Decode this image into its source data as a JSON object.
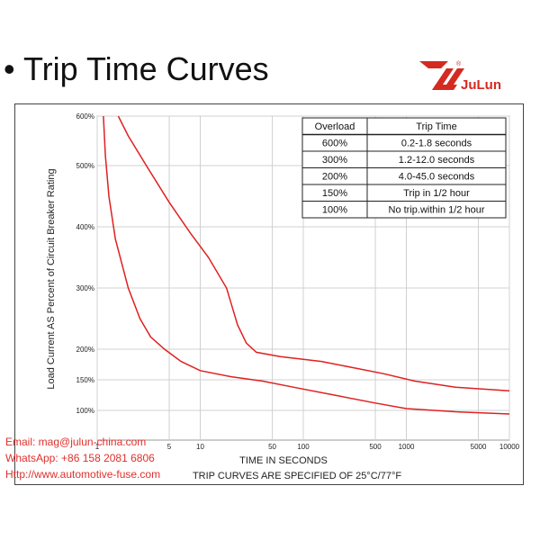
{
  "slide": {
    "title": "• Trip Time Curves",
    "logo_text": "JuLun",
    "logo_reg": "®",
    "logo_color": "#d42a20"
  },
  "contact": {
    "email": "Email: mag@julun-china.com",
    "whatsapp": "WhatsApp: +86 158 2081 6806",
    "website": "Http://www.automotive-fuse.com"
  },
  "chart_data": {
    "type": "line",
    "title": "",
    "xlabel": "TIME IN SECONDS",
    "ylabel": "Load Current AS Percent of Circuit Breaker Rating",
    "footnote": "TRIP CURVES ARE SPECIFIED OF 25°C/77°F",
    "x_scale": "log",
    "xlim": [
      1,
      10000
    ],
    "ylim": [
      90,
      600
    ],
    "grid": true,
    "x_ticks": [
      "1",
      "5",
      "10",
      "50",
      "100",
      "500",
      "1000",
      "5000",
      "10000"
    ],
    "y_ticks": [
      "100%",
      "150%",
      "200%",
      "300%",
      "400%",
      "500%",
      "600%"
    ],
    "series_color": "#e02020",
    "series": [
      {
        "points": [
          [
            1.15,
            600
          ],
          [
            1.2,
            520
          ],
          [
            1.3,
            450
          ],
          [
            1.5,
            380
          ],
          [
            2,
            300
          ],
          [
            2.6,
            250
          ],
          [
            3.3,
            220
          ],
          [
            4.5,
            200
          ],
          [
            6.5,
            180
          ],
          [
            10,
            165
          ],
          [
            20,
            155
          ],
          [
            40,
            148
          ],
          [
            80,
            138
          ],
          [
            200,
            125
          ],
          [
            500,
            112
          ],
          [
            1000,
            103
          ],
          [
            3000,
            97
          ],
          [
            10000,
            92
          ]
        ]
      },
      {
        "points": [
          [
            1.6,
            600
          ],
          [
            2,
            560
          ],
          [
            3,
            500
          ],
          [
            5,
            440
          ],
          [
            8,
            390
          ],
          [
            12,
            350
          ],
          [
            18,
            300
          ],
          [
            23,
            240
          ],
          [
            28,
            210
          ],
          [
            35,
            195
          ],
          [
            60,
            188
          ],
          [
            150,
            180
          ],
          [
            300,
            170
          ],
          [
            600,
            160
          ],
          [
            1200,
            148
          ],
          [
            3000,
            138
          ],
          [
            10000,
            132
          ]
        ]
      }
    ],
    "table": {
      "headers": [
        "Overload",
        "Trip Time"
      ],
      "rows": [
        [
          "600%",
          "0.2-1.8 seconds"
        ],
        [
          "300%",
          "1.2-12.0 seconds"
        ],
        [
          "200%",
          "4.0-45.0 seconds"
        ],
        [
          "150%",
          "Trip in 1/2 hour"
        ],
        [
          "100%",
          "No trip.within 1/2 hour"
        ]
      ]
    }
  }
}
